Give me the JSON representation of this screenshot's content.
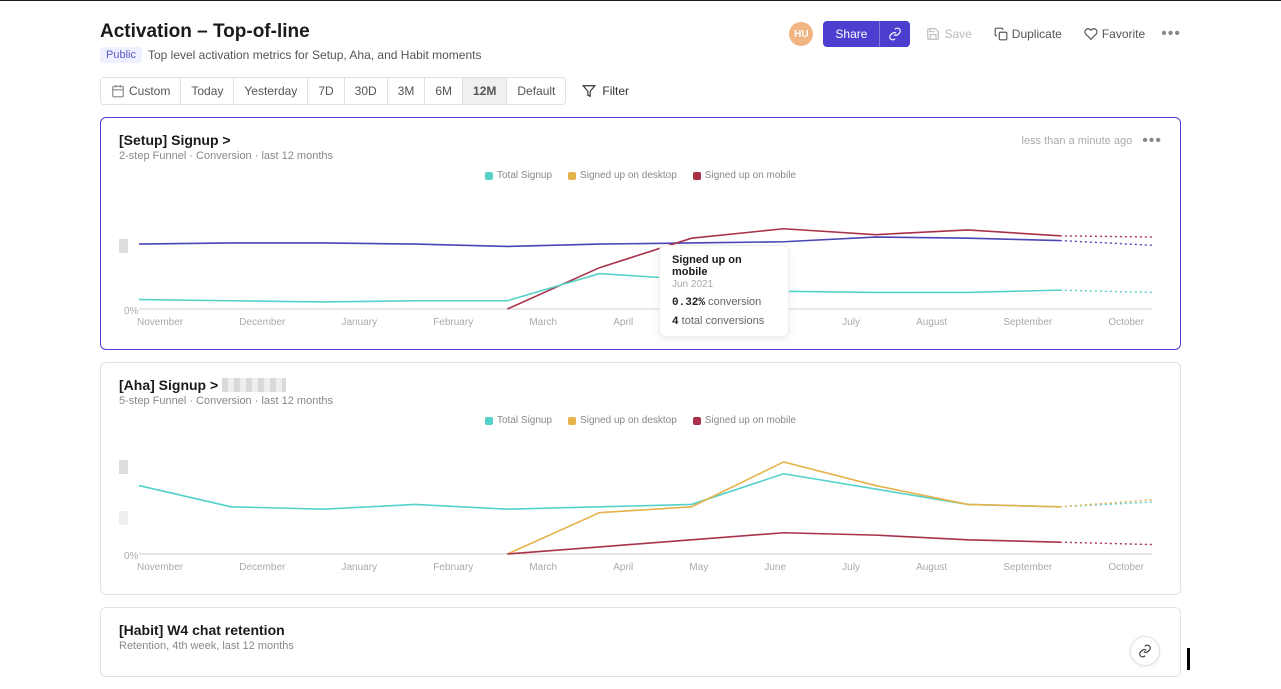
{
  "header": {
    "title": "Activation – Top-of-line",
    "visibility_badge": "Public",
    "subtitle": "Top level activation metrics for Setup, Aha, and Habit moments",
    "avatar_initials": "HU",
    "avatar_bg": "#f0b583",
    "share_label": "Share",
    "save_label": "Save",
    "duplicate_label": "Duplicate",
    "favorite_label": "Favorite"
  },
  "toolbar": {
    "ranges": [
      "Custom",
      "Today",
      "Yesterday",
      "7D",
      "30D",
      "3M",
      "6M",
      "12M",
      "Default"
    ],
    "active_range_index": 7,
    "filter_label": "Filter"
  },
  "months": [
    "November",
    "December",
    "January",
    "February",
    "March",
    "April",
    "May",
    "June",
    "July",
    "August",
    "September",
    "October"
  ],
  "legend": {
    "series": [
      {
        "label": "Total Signup",
        "color": "#54d1c8"
      },
      {
        "label": "Signed up on desktop",
        "color": "#e6b24a"
      },
      {
        "label": "Signed up on mobile",
        "color": "#a8324a"
      }
    ]
  },
  "card1": {
    "title": "[Setup] Signup >",
    "subtitle": "2-step Funnel · Conversion · last 12 months",
    "timestamp": "less than a minute ago",
    "y_zero": "0%",
    "chart": {
      "ylim": [
        0,
        1.0
      ],
      "x_count": 12,
      "series": [
        {
          "color": "#4a46b5",
          "values": [
            0.55,
            0.56,
            0.56,
            0.55,
            0.53,
            0.55,
            0.56,
            0.57,
            0.61,
            0.6,
            0.58,
            0.54
          ],
          "dash_after": 10
        },
        {
          "color": "#a8324a",
          "values": [
            null,
            null,
            null,
            null,
            0,
            0.35,
            0.6,
            0.68,
            0.63,
            0.67,
            0.62,
            0.61
          ],
          "dash_after": 10
        },
        {
          "color": "#54d1c8",
          "values": [
            0.08,
            0.07,
            0.06,
            0.07,
            0.07,
            0.3,
            0.25,
            0.15,
            0.14,
            0.14,
            0.16,
            0.14
          ],
          "dash_after": 10
        }
      ],
      "baseline_color": "#cfcfcf"
    },
    "tooltip": {
      "title": "Signed up on mobile",
      "date": "Jun 2021",
      "value1_num": "0.32%",
      "value1_lbl": "conversion",
      "value2_num": "4",
      "value2_lbl": "total conversions"
    }
  },
  "card2": {
    "title": "[Aha] Signup >",
    "subtitle": "5-step Funnel · Conversion · last 12 months",
    "y_zero": "0%",
    "chart": {
      "ylim": [
        0,
        1.0
      ],
      "x_count": 12,
      "series": [
        {
          "color": "#54d1c8",
          "values": [
            0.58,
            0.4,
            0.38,
            0.42,
            0.38,
            0.4,
            0.42,
            0.68,
            0.55,
            0.42,
            0.4,
            0.44
          ],
          "dash_after": 10
        },
        {
          "color": "#e6b24a",
          "values": [
            null,
            null,
            null,
            null,
            0,
            0.35,
            0.4,
            0.78,
            0.58,
            0.42,
            0.4,
            0.46
          ],
          "dash_after": 10
        },
        {
          "color": "#a8324a",
          "values": [
            null,
            null,
            null,
            null,
            0,
            0.06,
            0.12,
            0.18,
            0.16,
            0.12,
            0.1,
            0.08
          ],
          "dash_after": 10
        }
      ],
      "baseline_color": "#cfcfcf"
    }
  },
  "card3": {
    "title": "[Habit] W4 chat retention",
    "subtitle": "Retention, 4th week, last 12 months"
  },
  "colors": {
    "primary": "#4c3fcf",
    "border": "#e1e1e1",
    "text_muted": "#888"
  }
}
